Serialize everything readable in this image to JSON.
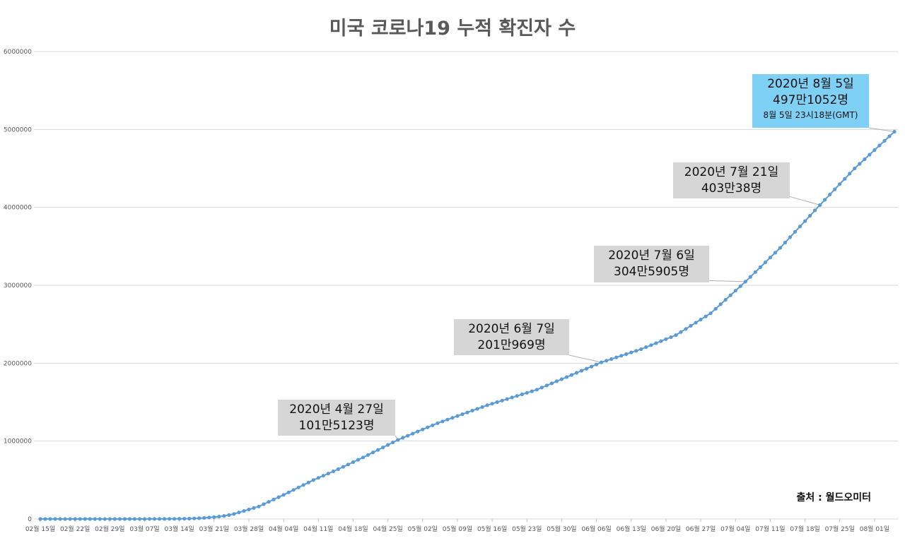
{
  "chart_data": {
    "type": "line",
    "title": "미국 코로나19 누적 확진자 수",
    "source": "출처 : 월드오미터",
    "ylim": [
      0,
      6000000
    ],
    "y_ticks": [
      "0",
      "1000000",
      "2000000",
      "3000000",
      "4000000",
      "5000000",
      "6000000"
    ],
    "x_start": "2020-02-15",
    "x_end": "2020-08-05",
    "x_tick_labels": [
      "02월 15일",
      "02월 22일",
      "02월 29일",
      "03월 07일",
      "03월 14일",
      "03월 21일",
      "03월 28일",
      "04월 04일",
      "04월 11일",
      "04월 18일",
      "04월 25일",
      "05월 02일",
      "05월 09일",
      "05월 16일",
      "05월 23일",
      "05월 30일",
      "06월 06일",
      "06월 13일",
      "06월 20일",
      "06월 27일",
      "07월 04일",
      "07월 11일",
      "07월 18일",
      "07월 25일",
      "08월 01일"
    ],
    "grid": true,
    "series": [
      {
        "color": "#5b9bd5",
        "points": [
          [
            "2020-02-15",
            15
          ],
          [
            "2020-03-01",
            100
          ],
          [
            "2020-03-08",
            500
          ],
          [
            "2020-03-15",
            3500
          ],
          [
            "2020-03-20",
            19000
          ],
          [
            "2020-03-25",
            65000
          ],
          [
            "2020-03-30",
            160000
          ],
          [
            "2020-04-04",
            310000
          ],
          [
            "2020-04-10",
            500000
          ],
          [
            "2020-04-15",
            640000
          ],
          [
            "2020-04-20",
            790000
          ],
          [
            "2020-04-27",
            1015123
          ],
          [
            "2020-05-05",
            1230000
          ],
          [
            "2020-05-15",
            1460000
          ],
          [
            "2020-05-25",
            1660000
          ],
          [
            "2020-06-07",
            2010969
          ],
          [
            "2020-06-15",
            2180000
          ],
          [
            "2020-06-22",
            2360000
          ],
          [
            "2020-06-29",
            2640000
          ],
          [
            "2020-07-06",
            3045905
          ],
          [
            "2020-07-13",
            3480000
          ],
          [
            "2020-07-21",
            4030038
          ],
          [
            "2020-07-28",
            4500000
          ],
          [
            "2020-08-05",
            4971052
          ]
        ]
      }
    ],
    "annotations": [
      {
        "lines": [
          "2020년 4월 27일",
          "101만5123명"
        ],
        "date": "2020-04-27",
        "value": 1015123
      },
      {
        "lines": [
          "2020년 6월 7일",
          "201만969명"
        ],
        "date": "2020-06-07",
        "value": 2010969
      },
      {
        "lines": [
          "2020년 7월 6일",
          "304만5905명"
        ],
        "date": "2020-07-06",
        "value": 3045905
      },
      {
        "lines": [
          "2020년 7월 21일",
          "403만38명"
        ],
        "date": "2020-07-21",
        "value": 4030038
      },
      {
        "lines": [
          "2020년 8월 5일",
          "497만1052명"
        ],
        "note": "8월 5일 23시18분(GMT)",
        "date": "2020-08-05",
        "value": 4971052,
        "highlight": true
      }
    ]
  }
}
